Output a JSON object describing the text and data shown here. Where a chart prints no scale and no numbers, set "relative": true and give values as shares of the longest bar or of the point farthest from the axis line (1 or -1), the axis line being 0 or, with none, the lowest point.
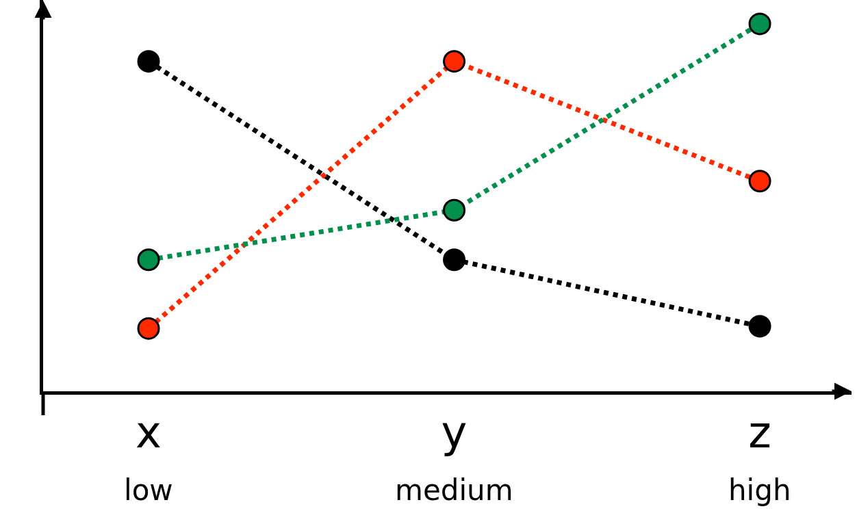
{
  "chart_data": {
    "type": "line",
    "relative": true,
    "categories": [
      "x",
      "y",
      "z"
    ],
    "series": [
      {
        "color": "#000000",
        "values": [
          0.898,
          0.358,
          0.177
        ]
      },
      {
        "color": "#ff2a00",
        "values": [
          0.171,
          0.898,
          0.572
        ]
      },
      {
        "color": "#008f4c",
        "values": [
          0.358,
          0.493,
          1
        ]
      }
    ],
    "annotations": [
      "low",
      "medium",
      "high"
    ],
    "marker": "circle",
    "line_style": "dotted"
  }
}
